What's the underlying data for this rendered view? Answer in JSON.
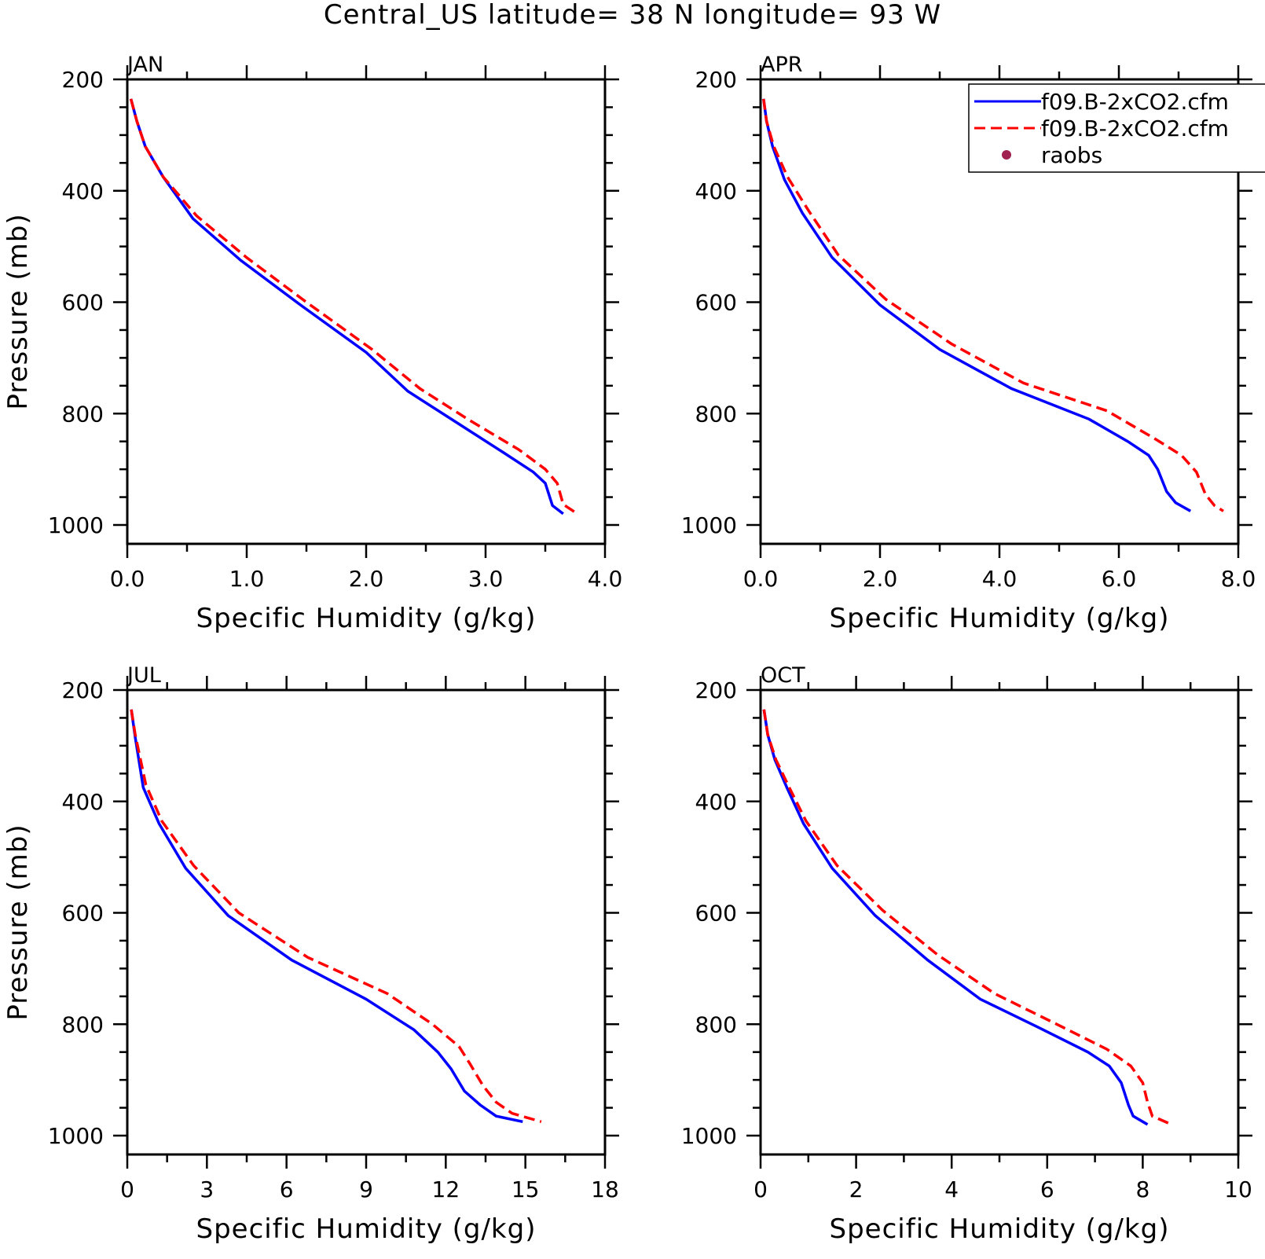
{
  "title": "Central_US  latitude= 38 N longitude= 93 W",
  "colors": {
    "model1": "#0000ff",
    "model2": "#ff0000",
    "raobs": "#a02050",
    "axis": "#000000"
  },
  "legend": {
    "placement": "top-right of APR panel",
    "entries": [
      {
        "label": "f09.B-2xCO2.cfm",
        "style": "solid",
        "color": "#0000ff"
      },
      {
        "label": "f09.B-2xCO2.cfm",
        "style": "dashed",
        "color": "#ff0000"
      },
      {
        "label": "raobs",
        "style": "marker",
        "color": "#a02050"
      }
    ]
  },
  "chart_data": [
    {
      "type": "line",
      "panel": "JAN",
      "xlabel": "Specific Humidity (g/kg)",
      "ylabel": "Pressure (mb)",
      "xlim": [
        0,
        4
      ],
      "ylim": [
        1000,
        200
      ],
      "xticks": [
        "0.0",
        "1.0",
        "2.0",
        "3.0",
        "4.0"
      ],
      "yticks": [
        "200",
        "400",
        "600",
        "800",
        "1000"
      ],
      "series": [
        {
          "name": "f09.B-2xCO2.cfm",
          "style": "solid",
          "x": [
            0.03,
            0.08,
            0.15,
            0.3,
            0.55,
            0.95,
            1.45,
            2.0,
            2.35,
            2.75,
            3.15,
            3.4,
            3.5,
            3.56,
            3.65
          ],
          "y": [
            235,
            275,
            320,
            375,
            450,
            525,
            605,
            690,
            760,
            815,
            870,
            905,
            925,
            965,
            980
          ]
        },
        {
          "name": "f09.B-2xCO2.cfm",
          "style": "dashed",
          "x": [
            0.03,
            0.08,
            0.15,
            0.3,
            0.58,
            1.0,
            1.5,
            2.05,
            2.45,
            2.85,
            3.28,
            3.5,
            3.6,
            3.65,
            3.77
          ],
          "y": [
            235,
            275,
            320,
            375,
            445,
            520,
            600,
            685,
            755,
            810,
            865,
            900,
            925,
            963,
            980
          ]
        }
      ]
    },
    {
      "type": "line",
      "panel": "APR",
      "xlabel": "Specific Humidity (g/kg)",
      "ylabel": "",
      "xlim": [
        0,
        8
      ],
      "ylim": [
        1000,
        200
      ],
      "xticks": [
        "0.0",
        "2.0",
        "4.0",
        "6.0",
        "8.0"
      ],
      "yticks": [
        "200",
        "400",
        "600",
        "800",
        "1000"
      ],
      "series": [
        {
          "name": "f09.B-2xCO2.cfm",
          "style": "solid",
          "x": [
            0.05,
            0.1,
            0.2,
            0.4,
            0.7,
            1.2,
            2.0,
            3.0,
            4.2,
            5.5,
            6.15,
            6.5,
            6.65,
            6.8,
            6.95,
            7.2
          ],
          "y": [
            235,
            275,
            320,
            380,
            440,
            520,
            605,
            685,
            755,
            810,
            850,
            875,
            900,
            940,
            960,
            975
          ]
        },
        {
          "name": "f09.B-2xCO2.cfm",
          "style": "dashed",
          "x": [
            0.05,
            0.1,
            0.22,
            0.45,
            0.8,
            1.3,
            2.1,
            3.2,
            4.4,
            5.8,
            6.6,
            7.05,
            7.3,
            7.45,
            7.6,
            7.75
          ],
          "y": [
            235,
            275,
            320,
            375,
            435,
            515,
            595,
            675,
            745,
            795,
            845,
            875,
            905,
            945,
            965,
            975
          ]
        }
      ]
    },
    {
      "type": "line",
      "panel": "JUL",
      "xlabel": "Specific Humidity (g/kg)",
      "ylabel": "Pressure (mb)",
      "xlim": [
        0,
        18
      ],
      "ylim": [
        1000,
        200
      ],
      "xticks": [
        "0",
        "3",
        "6",
        "9",
        "12",
        "15",
        "18"
      ],
      "yticks": [
        "200",
        "400",
        "600",
        "800",
        "1000"
      ],
      "series": [
        {
          "name": "f09.B-2xCO2.cfm",
          "style": "solid",
          "x": [
            0.15,
            0.3,
            0.6,
            1.2,
            2.2,
            3.8,
            6.2,
            9.0,
            10.8,
            11.7,
            12.2,
            12.7,
            13.3,
            13.9,
            14.9
          ],
          "y": [
            235,
            285,
            375,
            440,
            520,
            605,
            685,
            755,
            810,
            850,
            880,
            920,
            945,
            965,
            975
          ]
        },
        {
          "name": "f09.B-2xCO2.cfm",
          "style": "dashed",
          "x": [
            0.15,
            0.3,
            0.7,
            1.3,
            2.5,
            4.2,
            6.8,
            9.8,
            11.5,
            12.5,
            12.9,
            13.4,
            13.9,
            14.5,
            15.6
          ],
          "y": [
            235,
            280,
            370,
            435,
            515,
            600,
            680,
            745,
            800,
            840,
            870,
            910,
            940,
            960,
            975
          ]
        }
      ]
    },
    {
      "type": "line",
      "panel": "OCT",
      "xlabel": "Specific Humidity (g/kg)",
      "ylabel": "",
      "xlim": [
        0,
        10
      ],
      "ylim": [
        1000,
        200
      ],
      "xticks": [
        "0",
        "2",
        "4",
        "6",
        "8",
        "10"
      ],
      "yticks": [
        "200",
        "400",
        "600",
        "800",
        "1000"
      ],
      "series": [
        {
          "name": "f09.B-2xCO2.cfm",
          "style": "solid",
          "x": [
            0.07,
            0.15,
            0.3,
            0.55,
            0.9,
            1.5,
            2.4,
            3.5,
            4.6,
            5.8,
            6.85,
            7.3,
            7.55,
            7.7,
            7.8,
            8.1
          ],
          "y": [
            235,
            280,
            325,
            375,
            440,
            520,
            605,
            685,
            755,
            805,
            850,
            875,
            905,
            945,
            965,
            980
          ]
        },
        {
          "name": "f09.B-2xCO2.cfm",
          "style": "dashed",
          "x": [
            0.07,
            0.15,
            0.32,
            0.6,
            0.95,
            1.6,
            2.55,
            3.7,
            4.9,
            6.2,
            7.25,
            7.75,
            8.0,
            8.1,
            8.2,
            8.6
          ],
          "y": [
            235,
            280,
            325,
            375,
            435,
            515,
            595,
            675,
            745,
            800,
            845,
            875,
            905,
            940,
            965,
            980
          ]
        }
      ]
    }
  ]
}
